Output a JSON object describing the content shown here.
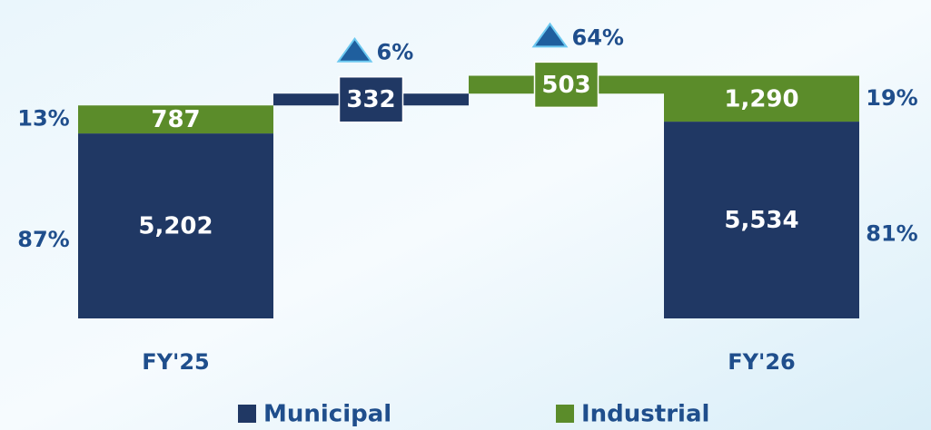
{
  "chart_data": {
    "type": "waterfall",
    "categories": [
      "FY'25",
      null,
      null,
      "FY'26"
    ],
    "series": [
      {
        "name": "Municipal",
        "color": "#203864",
        "values": [
          5202,
          332,
          null,
          5534
        ],
        "value_labels": [
          "5,202",
          "332",
          null,
          "5,534"
        ],
        "share_values": [
          87,
          null,
          null,
          81
        ],
        "share_labels": [
          "87%",
          null,
          null,
          "81%"
        ]
      },
      {
        "name": "Industrial",
        "color": "#5b8c2a",
        "values": [
          787,
          null,
          503,
          1290
        ],
        "value_labels": [
          "787",
          null,
          "503",
          "1,290"
        ],
        "share_values": [
          13,
          null,
          null,
          19
        ],
        "share_labels": [
          "13%",
          null,
          null,
          "19%"
        ]
      }
    ],
    "growth": [
      {
        "value": 6,
        "label": "6%"
      },
      {
        "value": 64,
        "label": "64%"
      }
    ],
    "ylim": [
      0,
      8000
    ]
  }
}
